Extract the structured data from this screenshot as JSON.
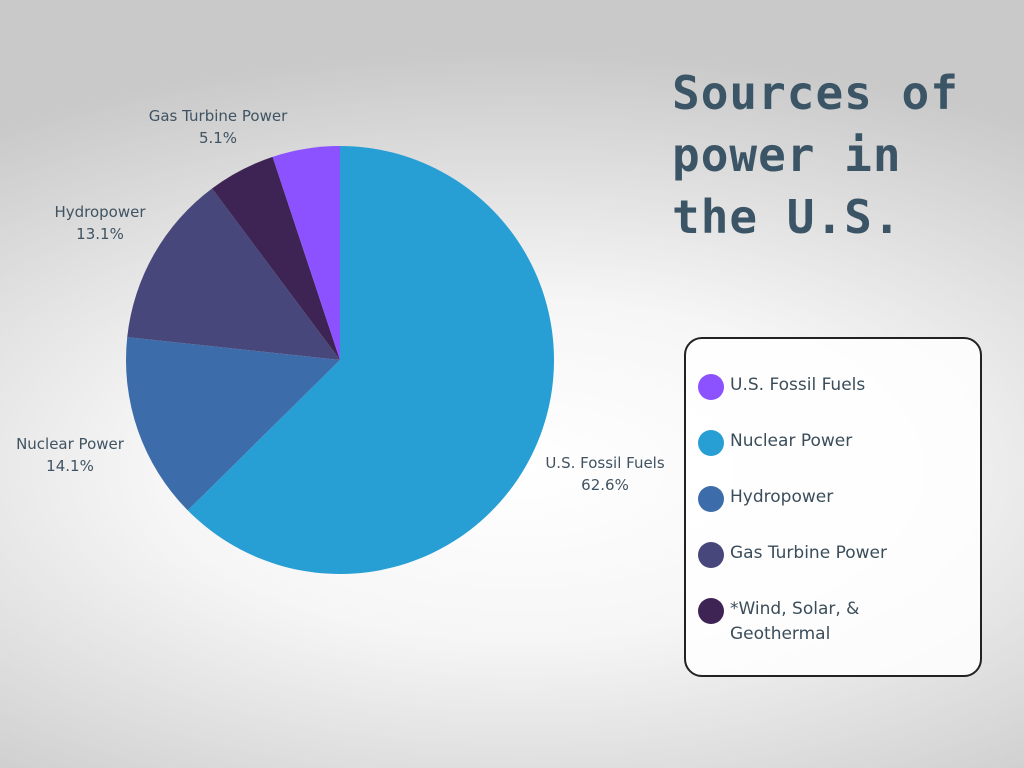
{
  "title_lines": [
    "Sources of",
    "power in",
    "the U.S."
  ],
  "chart_data": {
    "type": "pie",
    "slices": [
      {
        "label": "U.S. Fossil Fuels",
        "value": 62.6,
        "value_label": "62.6%",
        "color": "#289fd4"
      },
      {
        "label": "Nuclear Power",
        "value": 14.1,
        "value_label": "14.1%",
        "color": "#3c6daa"
      },
      {
        "label": "Hydropower",
        "value": 13.1,
        "value_label": "13.1%",
        "color": "#48477b"
      },
      {
        "label": "",
        "value": 5.1,
        "value_label": "",
        "color": "#3e2454"
      },
      {
        "label": "Gas Turbine Power",
        "value": 5.1,
        "value_label": "5.1%",
        "color": "#8c52ff"
      }
    ]
  },
  "legend": {
    "items": [
      {
        "label": "U.S. Fossil Fuels",
        "color": "#8c52ff"
      },
      {
        "label": "Nuclear Power",
        "color": "#289fd4"
      },
      {
        "label": "Hydropower",
        "color": "#3c6daa"
      },
      {
        "label": "Gas Turbine Power",
        "color": "#48477b"
      },
      {
        "label": "*Wind, Solar, & Geothermal",
        "color": "#3e2454"
      }
    ]
  }
}
